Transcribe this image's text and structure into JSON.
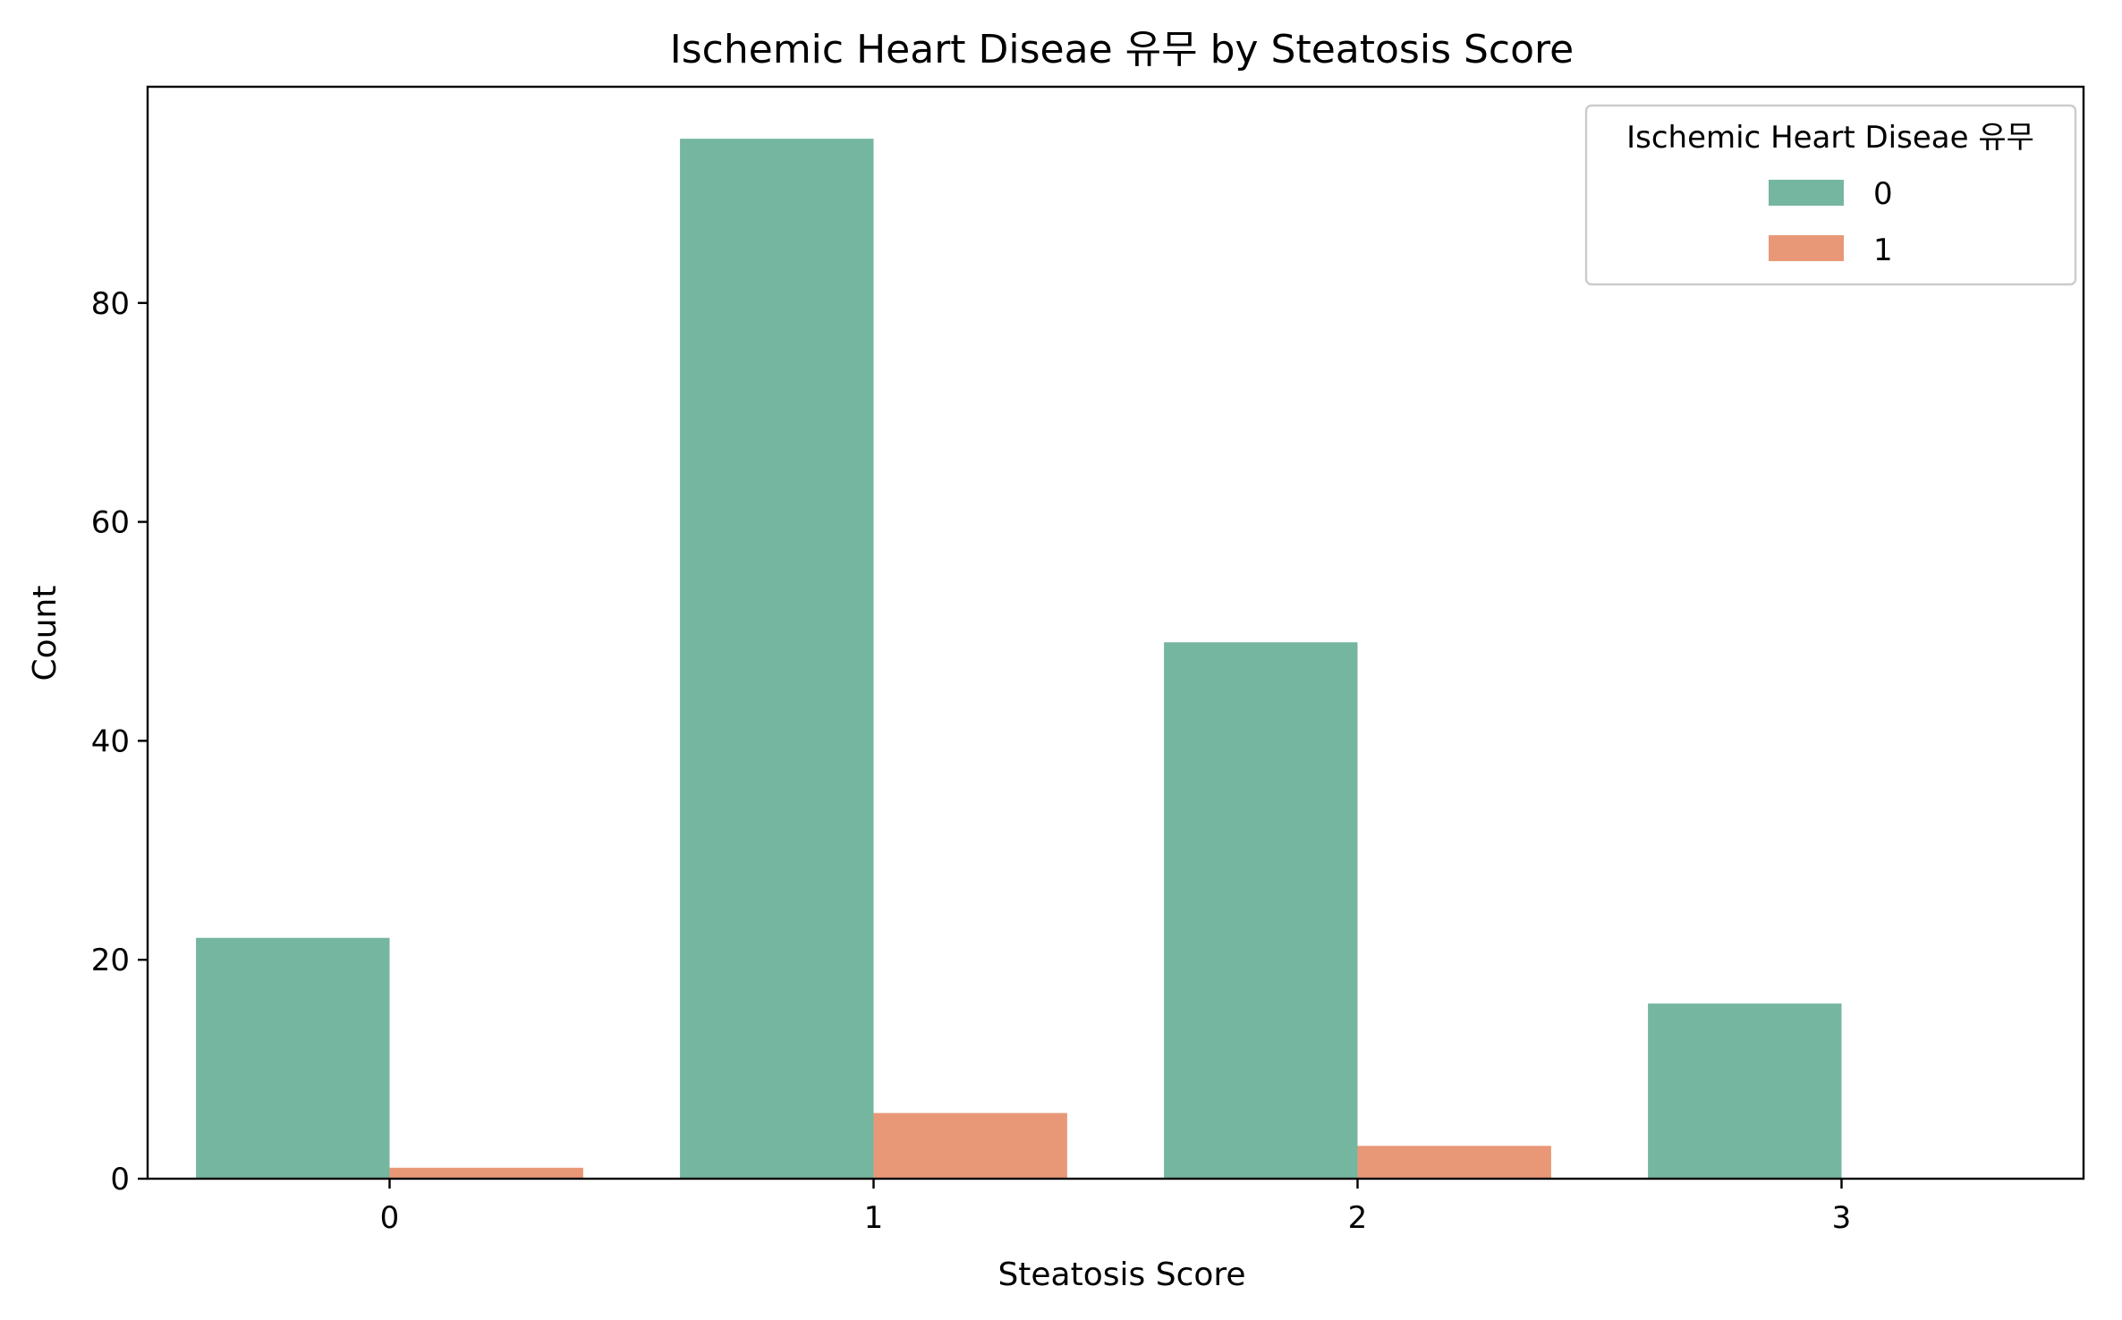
{
  "chart_data": {
    "type": "bar",
    "title": "Ischemic Heart Diseae 유무 by Steatosis Score",
    "xlabel": "Steatosis Score",
    "ylabel": "Count",
    "categories": [
      "0",
      "1",
      "2",
      "3"
    ],
    "yticks": [
      0,
      20,
      40,
      60,
      80
    ],
    "ylim": [
      0,
      99.75
    ],
    "grid": false,
    "legend": {
      "title": "Ischemic Heart Diseae 유무",
      "placement": "top-right"
    },
    "series": [
      {
        "name": "0",
        "values": [
          22,
          95,
          49,
          16
        ],
        "color": "#75b6a0"
      },
      {
        "name": "1",
        "values": [
          1,
          6,
          3,
          0
        ],
        "color": "#e99877"
      }
    ]
  }
}
